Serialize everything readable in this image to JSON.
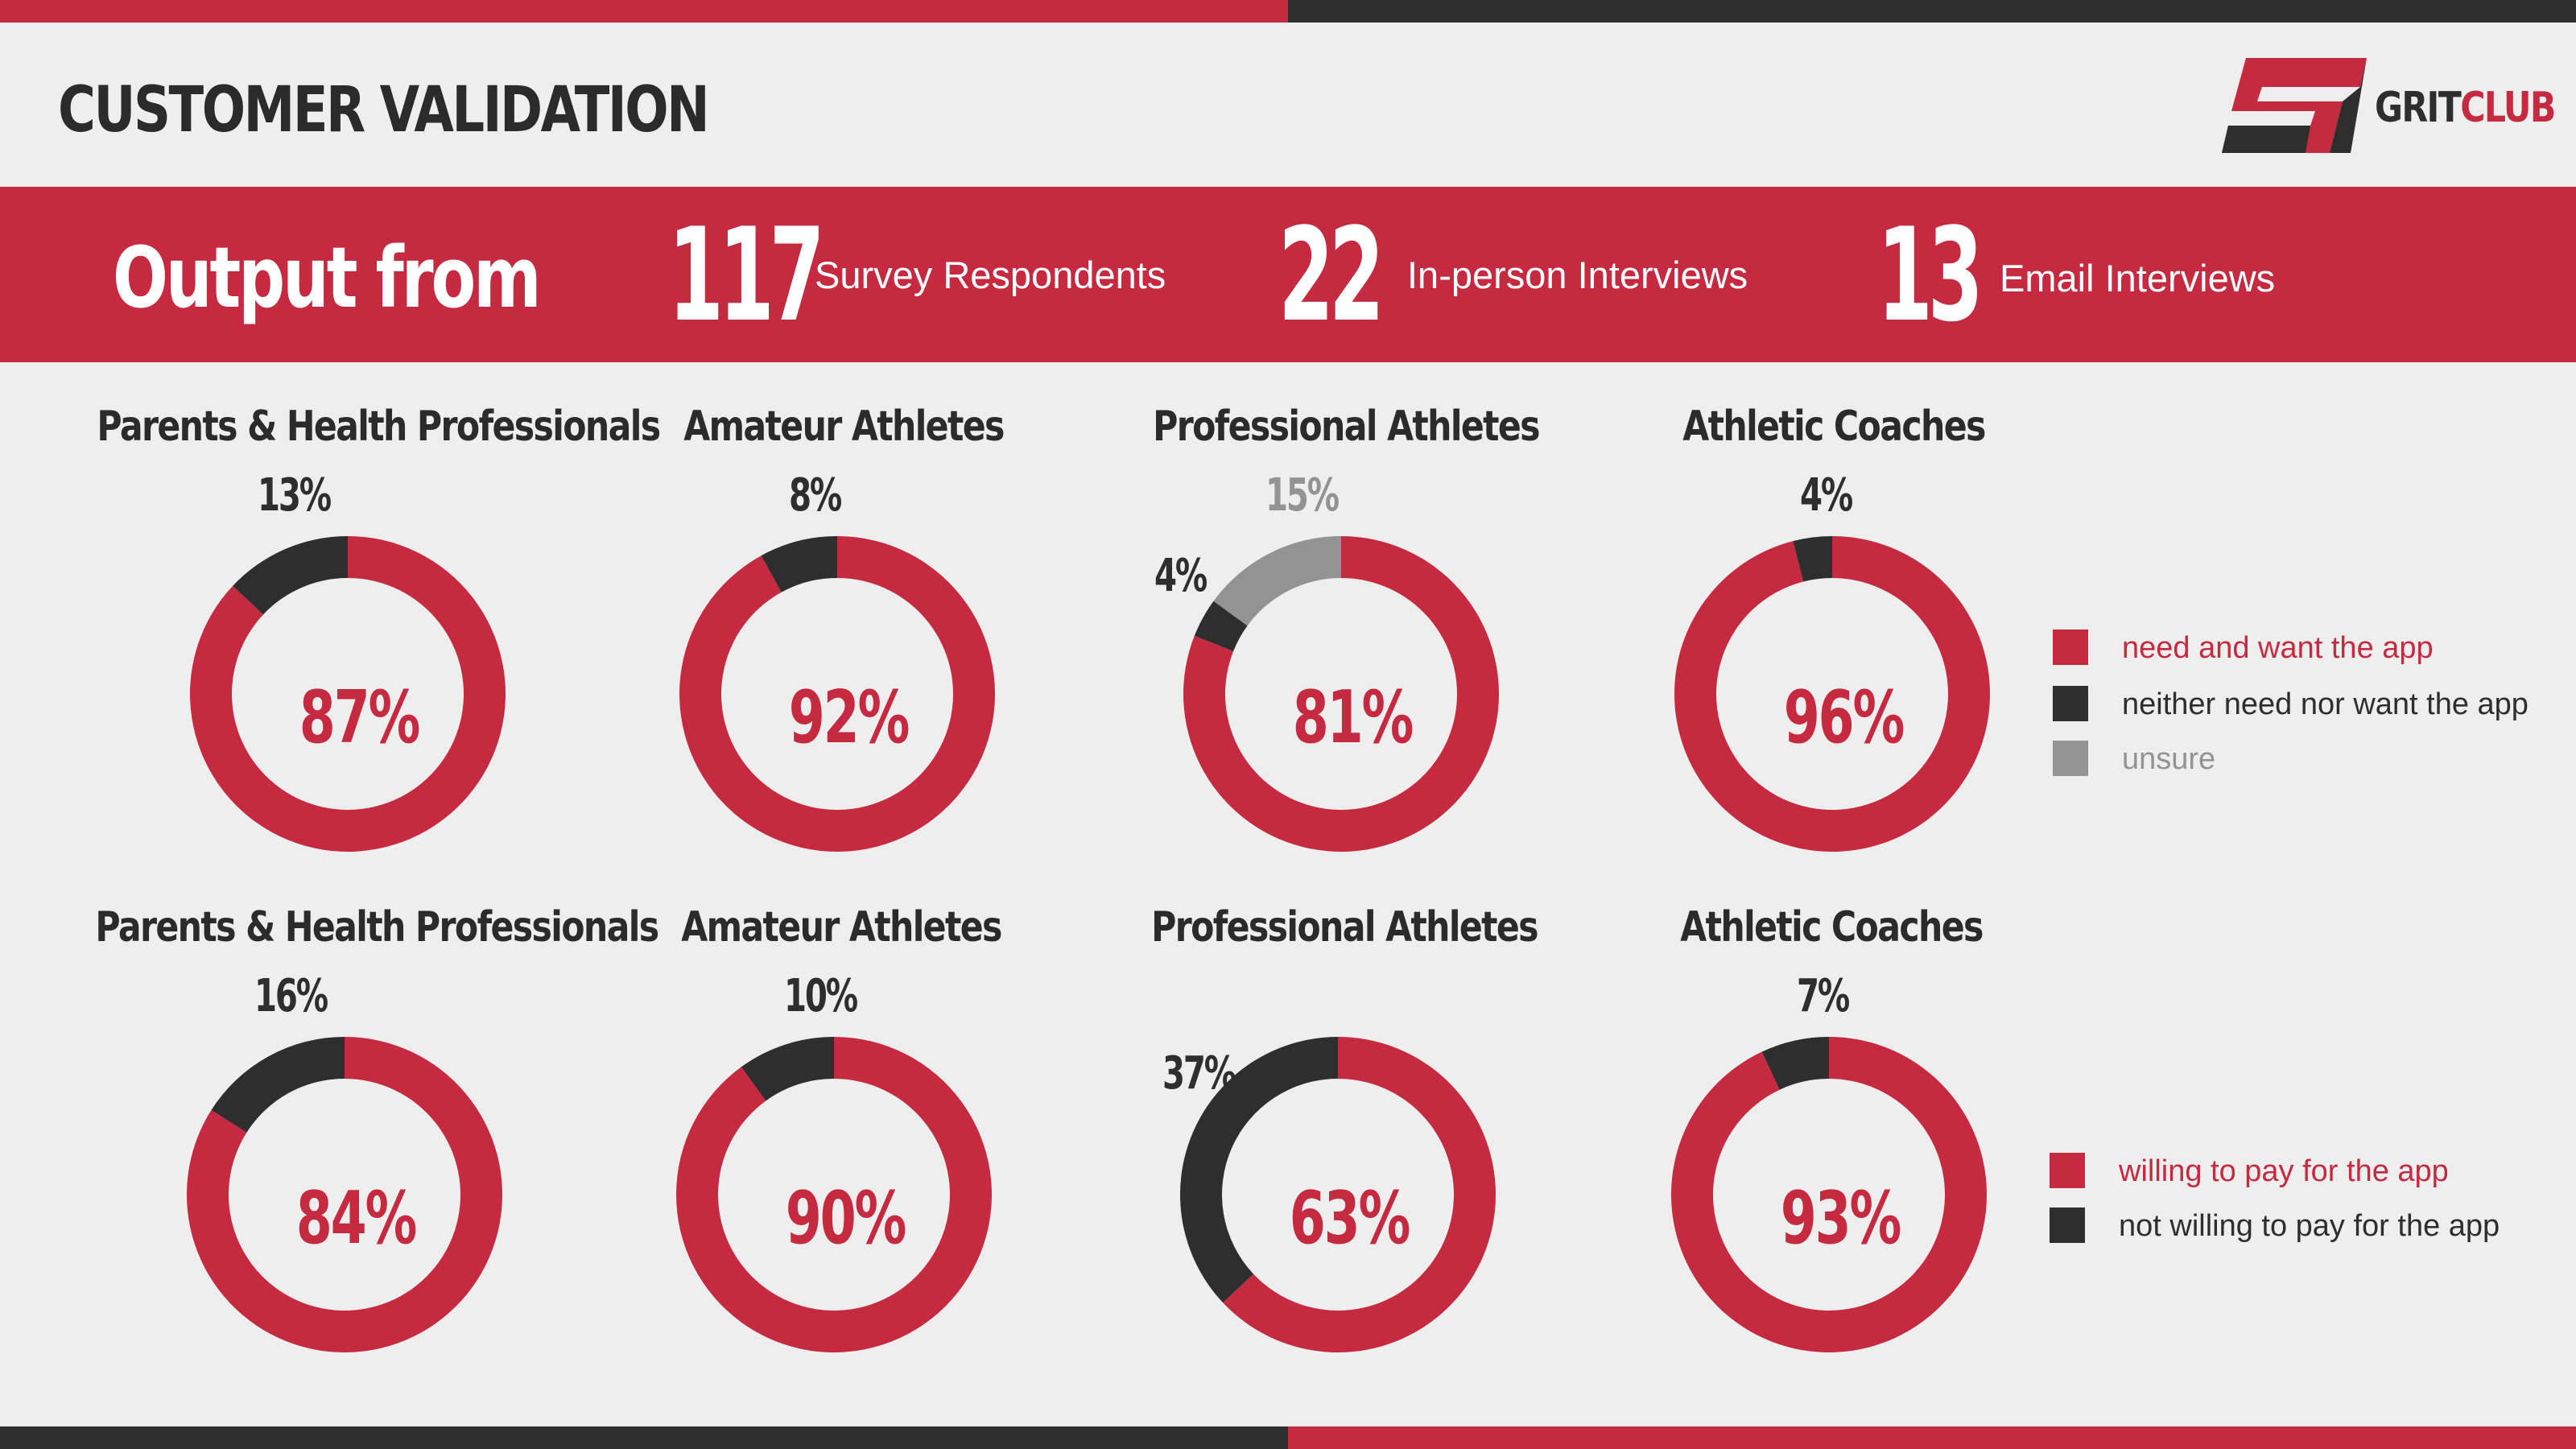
{
  "colors": {
    "red": "#c62a40",
    "dark": "#2e2e2e",
    "gray": "#939393",
    "bg": "#eeeeee"
  },
  "title": "CUSTOMER VALIDATION",
  "logo": {
    "grit": "GRIT",
    "club": "CLUB"
  },
  "banner": {
    "output_label": "Output from",
    "stats": [
      {
        "number": "117",
        "label": "Survey Respondents"
      },
      {
        "number": "22",
        "label": "In-person Interviews"
      },
      {
        "number": "13",
        "label": "Email Interviews"
      }
    ]
  },
  "legend_row1": [
    {
      "label": "need and want the app",
      "color": "#c62a40"
    },
    {
      "label": "neither need nor want the app",
      "color": "#2e2e2e"
    },
    {
      "label": "unsure",
      "color": "#939393"
    }
  ],
  "legend_row2": [
    {
      "label": "willing to pay for the app",
      "color": "#c62a40"
    },
    {
      "label": "not willing to pay for the app",
      "color": "#2e2e2e"
    }
  ],
  "chart_data": [
    {
      "type": "pie",
      "title": "Parents & Health Professionals",
      "series": [
        {
          "name": "need and want the app",
          "value": 87,
          "label": "87%"
        },
        {
          "name": "neither need nor want the app",
          "value": 13,
          "label": "13%"
        }
      ]
    },
    {
      "type": "pie",
      "title": "Amateur Athletes",
      "series": [
        {
          "name": "need and want the app",
          "value": 92,
          "label": "92%"
        },
        {
          "name": "neither need nor want the app",
          "value": 8,
          "label": "8%"
        }
      ]
    },
    {
      "type": "pie",
      "title": "Professional Athletes",
      "series": [
        {
          "name": "need and want the app",
          "value": 81,
          "label": "81%"
        },
        {
          "name": "neither need nor want the app",
          "value": 4,
          "label": "4%"
        },
        {
          "name": "unsure",
          "value": 15,
          "label": "15%"
        }
      ]
    },
    {
      "type": "pie",
      "title": "Athletic Coaches",
      "series": [
        {
          "name": "need and want the app",
          "value": 96,
          "label": "96%"
        },
        {
          "name": "neither need nor want the app",
          "value": 4,
          "label": "4%"
        }
      ]
    },
    {
      "type": "pie",
      "title": "Parents & Health Professionals",
      "series": [
        {
          "name": "willing to pay for the app",
          "value": 84,
          "label": "84%"
        },
        {
          "name": "not willing to pay for the app",
          "value": 16,
          "label": "16%"
        }
      ]
    },
    {
      "type": "pie",
      "title": "Amateur Athletes",
      "series": [
        {
          "name": "willing to pay for the app",
          "value": 90,
          "label": "90%"
        },
        {
          "name": "not willing to pay for the app",
          "value": 10,
          "label": "10%"
        }
      ]
    },
    {
      "type": "pie",
      "title": "Professional Athletes",
      "series": [
        {
          "name": "willing to pay for the app",
          "value": 63,
          "label": "63%"
        },
        {
          "name": "not willing to pay for the app",
          "value": 37,
          "label": "37%"
        }
      ]
    },
    {
      "type": "pie",
      "title": "Athletic Coaches",
      "series": [
        {
          "name": "willing to pay for the app",
          "value": 93,
          "label": "93%"
        },
        {
          "name": "not willing to pay for the app",
          "value": 7,
          "label": "7%"
        }
      ]
    }
  ]
}
